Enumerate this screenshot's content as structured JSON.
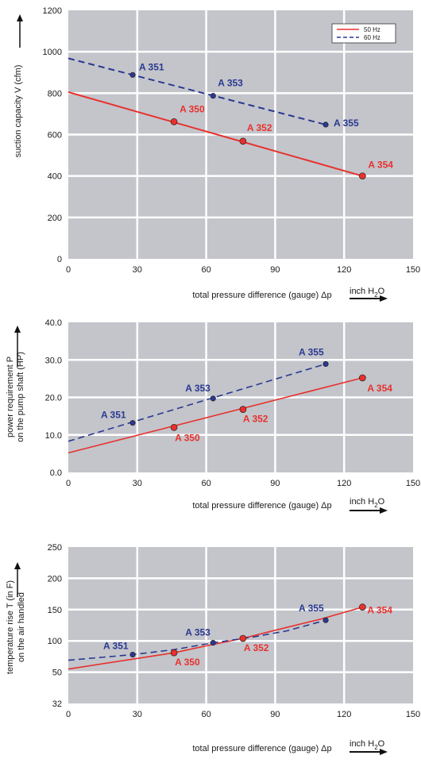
{
  "colors": {
    "red": "#e8312d",
    "blue": "#2b3990",
    "plot_bg": "#c3c5cb",
    "grid": "#ffffff"
  },
  "x_unit": {
    "prefix": "inch H",
    "sub": "2",
    "suffix": "O"
  },
  "chart_data": [
    {
      "type": "line",
      "xlabel": "total pressure difference (gauge)  Δp",
      "ylabel": "suction capacity V  (cfm)",
      "xlim": [
        0,
        150
      ],
      "ylim": [
        0,
        1200
      ],
      "x_ticks": [
        "0",
        "30",
        "60",
        "90",
        "120",
        "150"
      ],
      "y_ticks": [
        "0",
        "200",
        "400",
        "600",
        "800",
        "1000",
        "1200"
      ],
      "grid": true,
      "legend": "top-right",
      "series": [
        {
          "name": "50 Hz",
          "color": "#e8312d",
          "dash": false,
          "line": [
            [
              0,
              805
            ],
            [
              128,
              400
            ]
          ],
          "points": [
            {
              "label": "A 350",
              "x": 46,
              "y": 662
            },
            {
              "label": "A 352",
              "x": 76,
              "y": 568
            },
            {
              "label": "A 354",
              "x": 128,
              "y": 400
            }
          ]
        },
        {
          "name": "60 Hz",
          "color": "#2b3990",
          "dash": true,
          "line": [
            [
              0,
              968
            ],
            [
              112,
              648
            ]
          ],
          "points": [
            {
              "label": "A 351",
              "x": 28,
              "y": 888
            },
            {
              "label": "A 353",
              "x": 63,
              "y": 787
            },
            {
              "label": "A 355",
              "x": 112,
              "y": 648
            }
          ]
        }
      ]
    },
    {
      "type": "line",
      "xlabel": "total pressure difference (gauge)  Δp",
      "ylabel": [
        "power requirement P",
        "on the pump shaft (HP)"
      ],
      "xlim": [
        0,
        150
      ],
      "ylim": [
        0,
        40
      ],
      "x_ticks": [
        "0",
        "30",
        "60",
        "90",
        "120",
        "150"
      ],
      "y_ticks": [
        "0.0",
        "10.0",
        "20.0",
        "30.0",
        "40.0"
      ],
      "grid": true,
      "series": [
        {
          "name": "50 Hz",
          "color": "#e8312d",
          "dash": false,
          "line": [
            [
              0,
              5.2
            ],
            [
              128,
              25.2
            ]
          ],
          "points": [
            {
              "label": "A 350",
              "x": 46,
              "y": 12.0
            },
            {
              "label": "A 352",
              "x": 76,
              "y": 16.8
            },
            {
              "label": "A 354",
              "x": 128,
              "y": 25.2
            }
          ]
        },
        {
          "name": "60 Hz",
          "color": "#2b3990",
          "dash": true,
          "line": [
            [
              0,
              8.3
            ],
            [
              112,
              28.9
            ]
          ],
          "points": [
            {
              "label": "A 351",
              "x": 28,
              "y": 13.2
            },
            {
              "label": "A 353",
              "x": 63,
              "y": 19.7
            },
            {
              "label": "A 355",
              "x": 112,
              "y": 28.9
            }
          ]
        }
      ]
    },
    {
      "type": "line",
      "xlabel": "total pressure difference (gauge)  Δp",
      "ylabel": [
        "temperature rise   T   (in F)",
        "on the air handled"
      ],
      "xlim": [
        0,
        150
      ],
      "ylim": [
        32,
        250
      ],
      "x_ticks": [
        "0",
        "30",
        "60",
        "90",
        "120",
        "150"
      ],
      "y_ticks": [
        "32",
        "50",
        "100",
        "150",
        "200",
        "250"
      ],
      "y_tick_values": [
        32,
        50,
        100,
        150,
        200,
        250
      ],
      "grid": true,
      "series": [
        {
          "name": "50 Hz",
          "color": "#e8312d",
          "dash": false,
          "line": [
            [
              0,
              55
            ],
            [
              30,
              72
            ],
            [
              46,
              81
            ],
            [
              60,
              92
            ],
            [
              76,
              104
            ],
            [
              90,
              117
            ],
            [
              110,
              135
            ],
            [
              128,
              154
            ]
          ],
          "points": [
            {
              "label": "A 350",
              "x": 46,
              "y": 81
            },
            {
              "label": "A 352",
              "x": 76,
              "y": 104
            },
            {
              "label": "A 354",
              "x": 128,
              "y": 154
            }
          ]
        },
        {
          "name": "60 Hz",
          "color": "#2b3990",
          "dash": true,
          "line": [
            [
              0,
              69
            ],
            [
              28,
              78
            ],
            [
              46,
              86
            ],
            [
              63,
              97
            ],
            [
              80,
              106
            ],
            [
              95,
              116
            ],
            [
              112,
              133
            ]
          ],
          "points": [
            {
              "label": "A 351",
              "x": 28,
              "y": 78
            },
            {
              "label": "A 353",
              "x": 63,
              "y": 97
            },
            {
              "label": "A 355",
              "x": 112,
              "y": 133
            }
          ]
        }
      ]
    }
  ]
}
